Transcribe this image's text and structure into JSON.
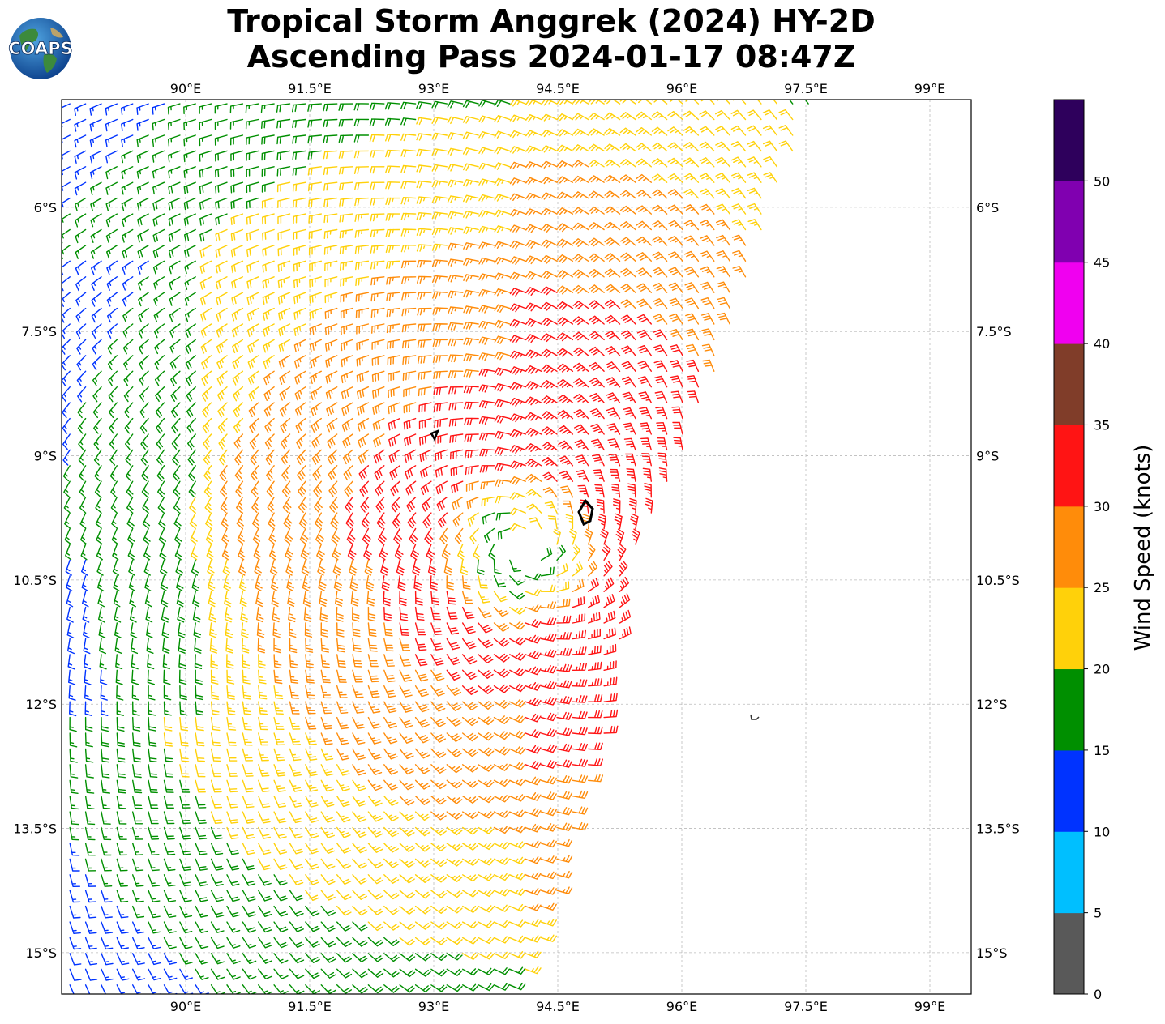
{
  "title": {
    "line1": "Tropical Storm Anggrek (2024) HY-2D",
    "line2": "Ascending Pass 2024-01-17 08:47Z"
  },
  "logo": {
    "text": "COAPS",
    "icon": "globe-logo-icon"
  },
  "map": {
    "lon_range": [
      88.5,
      99.5
    ],
    "lat_range": [
      -15.5,
      -4.7
    ],
    "lon_ticks": [
      90,
      91.5,
      93,
      94.5,
      96,
      97.5,
      99
    ],
    "lat_ticks": [
      -6,
      -7.5,
      -9,
      -10.5,
      -12,
      -13.5,
      -15
    ],
    "lon_labels": [
      "90°E",
      "91.5°E",
      "93°E",
      "94.5°E",
      "96°E",
      "97.5°E",
      "99°E"
    ],
    "lat_labels": [
      "6°S",
      "7.5°S",
      "9°S",
      "10.5°S",
      "12°S",
      "13.5°S",
      "15°S"
    ],
    "grid": "dashed",
    "storm_center": {
      "lon": 94.1,
      "lat": -10.1
    },
    "swath_right_edge": [
      {
        "lat": -4.7,
        "lon": 97.6
      },
      {
        "lat": -6,
        "lon": 97.1
      },
      {
        "lat": -7.5,
        "lon": 96.6
      },
      {
        "lat": -9,
        "lon": 96.0
      },
      {
        "lat": -10.5,
        "lon": 95.3
      },
      {
        "lat": -12,
        "lon": 95.2
      },
      {
        "lat": -13.5,
        "lon": 94.7
      },
      {
        "lat": -15,
        "lon": 94.3
      },
      {
        "lat": -15.5,
        "lon": 94.0
      }
    ]
  },
  "colorbar": {
    "label": "Wind Speed (knots)",
    "ticks": [
      "0",
      "5",
      "10",
      "15",
      "20",
      "25",
      "30",
      "35",
      "40",
      "45",
      "50"
    ],
    "bins": [
      {
        "min": 0,
        "max": 5,
        "color": "#595959"
      },
      {
        "min": 5,
        "max": 10,
        "color": "#00bfff"
      },
      {
        "min": 10,
        "max": 15,
        "color": "#0033ff"
      },
      {
        "min": 15,
        "max": 20,
        "color": "#008f00"
      },
      {
        "min": 20,
        "max": 25,
        "color": "#ffd10a"
      },
      {
        "min": 25,
        "max": 30,
        "color": "#ff8c0a"
      },
      {
        "min": 30,
        "max": 35,
        "color": "#ff1414"
      },
      {
        "min": 35,
        "max": 40,
        "color": "#803d29"
      },
      {
        "min": 40,
        "max": 45,
        "color": "#f000f0"
      },
      {
        "min": 45,
        "max": 50,
        "color": "#8000b0"
      },
      {
        "min": 50,
        "max": 55,
        "color": "#2e005c"
      }
    ]
  }
}
